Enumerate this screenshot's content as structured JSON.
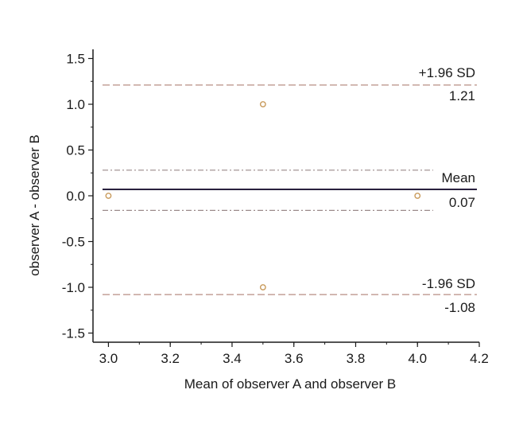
{
  "chart_data": {
    "type": "scatter",
    "title": "",
    "xlabel": "Mean of observer A and observer B",
    "ylabel": "observer A - observer B",
    "xlim": [
      2.95,
      4.2
    ],
    "ylim": [
      -1.6,
      1.6
    ],
    "x_ticks": [
      "3.0",
      "3.2",
      "3.4",
      "3.6",
      "3.8",
      "4.0",
      "4.2"
    ],
    "y_ticks": [
      "1.5",
      "1.0",
      "0.5",
      "0.0",
      "-0.5",
      "-1.0",
      "-1.5"
    ],
    "grid": false,
    "points": [
      {
        "x": 3.0,
        "y": 0.0
      },
      {
        "x": 3.5,
        "y": 1.0
      },
      {
        "x": 3.5,
        "y": -1.0
      },
      {
        "x": 4.0,
        "y": 0.0
      }
    ],
    "mean_line": {
      "value": 0.07,
      "label": "Mean",
      "value_label": "0.07"
    },
    "upper_loa": {
      "value": 1.21,
      "label": "+1.96 SD",
      "value_label": "1.21"
    },
    "lower_loa": {
      "value": -1.08,
      "label": "-1.96 SD",
      "value_label": "-1.08"
    },
    "mean_ci": {
      "upper": 0.28,
      "lower": -0.16
    },
    "colors": {
      "axis": "#1a1a1a",
      "mean_line": "#1a1030",
      "loa_line": "#c8a8a0",
      "ci_line": "#9a8a8a",
      "points": "#c89a5a"
    }
  }
}
